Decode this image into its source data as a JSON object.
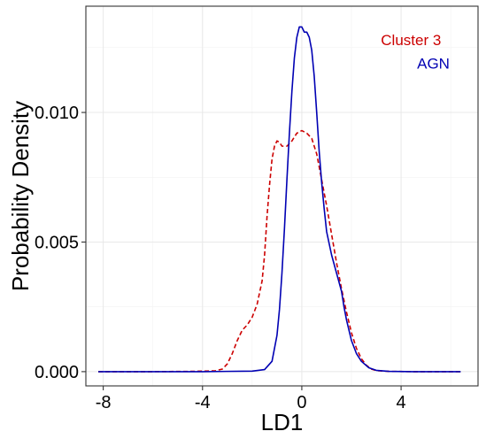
{
  "chart_data": {
    "type": "line",
    "xlabel": "LD1",
    "ylabel": "Probability Density",
    "xlim": [
      -8.7,
      7.1
    ],
    "ylim": [
      -0.00055,
      0.0141
    ],
    "x_ticks": [
      -8,
      -4,
      0,
      4
    ],
    "x_tick_labels": [
      "-8",
      "-4",
      "0",
      "4"
    ],
    "y_ticks": [
      0.0,
      0.005,
      0.01
    ],
    "y_tick_labels": [
      "0.000",
      "0.005",
      "0.010"
    ],
    "x_minor_gridlines": [
      -6,
      -2,
      2,
      6
    ],
    "y_minor_gridlines": [
      0.0025,
      0.0075,
      0.0125
    ],
    "grid": true,
    "panel_border": true,
    "legend": "none",
    "annotations": [
      {
        "text": "Cluster 3",
        "color": "#cc0000",
        "x": 4.4,
        "y": 0.0128
      },
      {
        "text": "AGN",
        "color": "#0000b3",
        "x": 5.3,
        "y": 0.0119
      }
    ],
    "series": [
      {
        "name": "Cluster 3",
        "color": "#cc0000",
        "style": "dashed",
        "points": [
          [
            -8.2,
            0.0
          ],
          [
            -6.0,
            0.0
          ],
          [
            -4.5,
            1e-05
          ],
          [
            -3.5,
            3e-05
          ],
          [
            -3.2,
            0.0001
          ],
          [
            -3.0,
            0.0003
          ],
          [
            -2.8,
            0.0007
          ],
          [
            -2.6,
            0.0012
          ],
          [
            -2.4,
            0.0016
          ],
          [
            -2.2,
            0.0018
          ],
          [
            -2.0,
            0.0021
          ],
          [
            -1.8,
            0.0026
          ],
          [
            -1.6,
            0.0035
          ],
          [
            -1.5,
            0.0045
          ],
          [
            -1.4,
            0.006
          ],
          [
            -1.3,
            0.0072
          ],
          [
            -1.2,
            0.0082
          ],
          [
            -1.1,
            0.0087
          ],
          [
            -1.0,
            0.0089
          ],
          [
            -0.9,
            0.00885
          ],
          [
            -0.8,
            0.0087
          ],
          [
            -0.6,
            0.0087
          ],
          [
            -0.4,
            0.0089
          ],
          [
            -0.2,
            0.0092
          ],
          [
            0.0,
            0.0093
          ],
          [
            0.2,
            0.0092
          ],
          [
            0.4,
            0.009
          ],
          [
            0.6,
            0.0084
          ],
          [
            0.8,
            0.0074
          ],
          [
            1.0,
            0.0064
          ],
          [
            1.2,
            0.0053
          ],
          [
            1.4,
            0.0042
          ],
          [
            1.6,
            0.0032
          ],
          [
            1.8,
            0.0023
          ],
          [
            2.0,
            0.0015
          ],
          [
            2.2,
            0.0009
          ],
          [
            2.4,
            0.0005
          ],
          [
            2.6,
            0.00025
          ],
          [
            2.8,
            0.0001
          ],
          [
            3.0,
            4e-05
          ],
          [
            3.5,
            1e-05
          ],
          [
            4.5,
            0.0
          ],
          [
            6.4,
            0.0
          ]
        ]
      },
      {
        "name": "AGN",
        "color": "#0000b3",
        "style": "solid",
        "points": [
          [
            -8.2,
            0.0
          ],
          [
            -4.0,
            0.0
          ],
          [
            -2.0,
            2e-05
          ],
          [
            -1.5,
            8e-05
          ],
          [
            -1.2,
            0.0004
          ],
          [
            -1.0,
            0.0014
          ],
          [
            -0.9,
            0.0024
          ],
          [
            -0.8,
            0.0038
          ],
          [
            -0.7,
            0.0055
          ],
          [
            -0.6,
            0.0074
          ],
          [
            -0.5,
            0.0092
          ],
          [
            -0.4,
            0.0108
          ],
          [
            -0.3,
            0.0121
          ],
          [
            -0.2,
            0.0129
          ],
          [
            -0.1,
            0.0133
          ],
          [
            0.0,
            0.0133
          ],
          [
            0.1,
            0.0131
          ],
          [
            0.2,
            0.0131
          ],
          [
            0.3,
            0.0129
          ],
          [
            0.4,
            0.0124
          ],
          [
            0.5,
            0.0114
          ],
          [
            0.6,
            0.01
          ],
          [
            0.7,
            0.0085
          ],
          [
            0.8,
            0.0073
          ],
          [
            0.9,
            0.0063
          ],
          [
            1.0,
            0.0054
          ],
          [
            1.2,
            0.0045
          ],
          [
            1.4,
            0.0038
          ],
          [
            1.6,
            0.0031
          ],
          [
            1.7,
            0.0025
          ],
          [
            1.8,
            0.002
          ],
          [
            1.9,
            0.0016
          ],
          [
            2.0,
            0.0012
          ],
          [
            2.2,
            0.0007
          ],
          [
            2.4,
            0.0004
          ],
          [
            2.7,
            0.00015
          ],
          [
            3.0,
            5e-05
          ],
          [
            3.5,
            1e-05
          ],
          [
            4.5,
            0.0
          ],
          [
            6.4,
            0.0
          ]
        ]
      }
    ]
  }
}
